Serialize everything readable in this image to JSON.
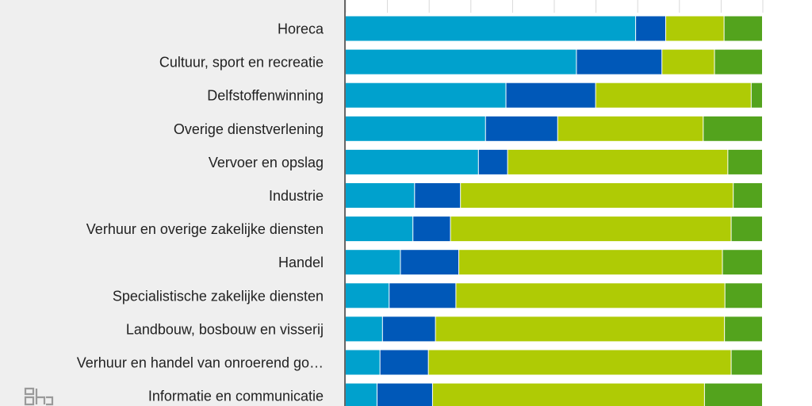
{
  "colors": {
    "panel_bg": "#efefef",
    "axis": "#666666",
    "grid": "#d9d9d9",
    "series": [
      "#00a1cd",
      "#0058b8",
      "#afcb05",
      "#53a31d"
    ]
  },
  "logo": {
    "icon": "cbs-logo-icon"
  },
  "chart_data": {
    "type": "bar",
    "orientation": "horizontal",
    "stacked": true,
    "normalized": true,
    "xlim": [
      0,
      100
    ],
    "grid": true,
    "x_gridlines": [
      0,
      10,
      20,
      30,
      40,
      50,
      60,
      70,
      80,
      90,
      100
    ],
    "categories": [
      "Horeca",
      "Cultuur, sport en recreatie",
      "Delfstoffenwinning",
      "Overige dienstverlening",
      "Vervoer en opslag",
      "Industrie",
      "Verhuur en overige zakelijke diensten",
      "Handel",
      "Specialistische zakelijke diensten",
      "Landbouw, bosbouw en visserij",
      "Verhuur en handel van onroerend go…",
      "Informatie en communicatie"
    ],
    "series": [
      {
        "values": [
          69.6,
          55.4,
          38.5,
          33.6,
          31.9,
          16.6,
          16.2,
          13.2,
          10.5,
          8.9,
          8.3,
          7.6
        ]
      },
      {
        "values": [
          7.2,
          20.5,
          21.5,
          17.3,
          7.0,
          11.0,
          9.0,
          14.0,
          16.0,
          12.7,
          11.6,
          13.3
        ]
      },
      {
        "values": [
          14.0,
          12.6,
          37.3,
          34.9,
          52.8,
          65.4,
          67.3,
          63.2,
          64.5,
          69.3,
          72.6,
          65.2
        ]
      },
      {
        "values": [
          9.2,
          11.5,
          2.7,
          14.2,
          8.3,
          7.0,
          7.5,
          9.6,
          9.0,
          9.1,
          7.5,
          13.9
        ]
      }
    ]
  }
}
